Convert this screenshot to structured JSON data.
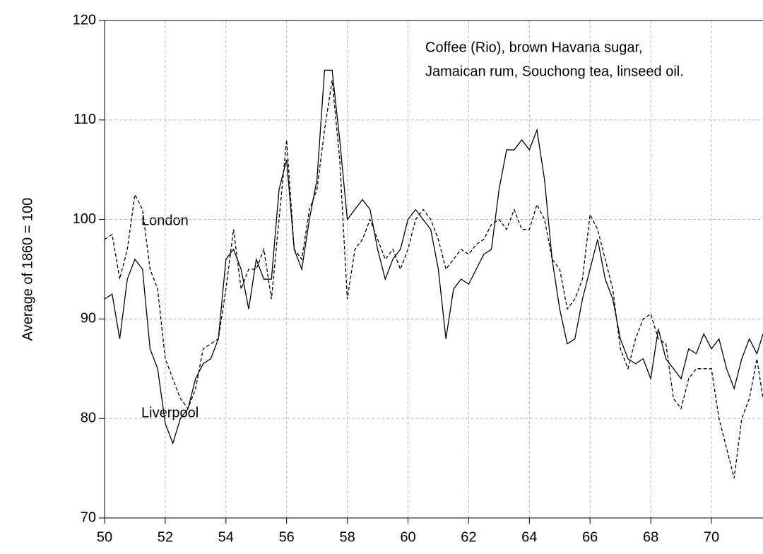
{
  "chart_data": {
    "type": "line",
    "y_label": "Average of 1860 = 100",
    "annotations": [
      "Coffee (Rio), brown Havana sugar,",
      "Jamaican rum, Souchong tea, linseed oil."
    ],
    "x": [
      50,
      50.25,
      50.5,
      50.75,
      51,
      51.25,
      51.5,
      51.75,
      52,
      52.25,
      52.5,
      52.75,
      53,
      53.25,
      53.5,
      53.75,
      54,
      54.25,
      54.5,
      54.75,
      55,
      55.25,
      55.5,
      55.75,
      56,
      56.25,
      56.5,
      56.75,
      57,
      57.25,
      57.5,
      57.75,
      58,
      58.25,
      58.5,
      58.75,
      59,
      59.25,
      59.5,
      59.75,
      60,
      60.25,
      60.5,
      60.75,
      61,
      61.25,
      61.5,
      61.75,
      62,
      62.25,
      62.5,
      62.75,
      63,
      63.25,
      63.5,
      63.75,
      64,
      64.25,
      64.5,
      64.75,
      65,
      65.25,
      65.5,
      65.75,
      66,
      66.25,
      66.5,
      66.75,
      67,
      67.25,
      67.5,
      67.75,
      68,
      68.25,
      68.5,
      68.75,
      69,
      69.25,
      69.5,
      69.75,
      70,
      70.25,
      70.5,
      70.75,
      71,
      71.25,
      71.5,
      71.7
    ],
    "series": [
      {
        "name": "London",
        "color": "#000000",
        "dash": true,
        "values": [
          98,
          98.5,
          94,
          97,
          102.5,
          101,
          95,
          93,
          86,
          84,
          82,
          81,
          83,
          87,
          87.5,
          88,
          93,
          99,
          93,
          95,
          95,
          97,
          92,
          100,
          108,
          97,
          96,
          101,
          103,
          109,
          114,
          106,
          92,
          97,
          98,
          100,
          98,
          96,
          97,
          95,
          97,
          100,
          101,
          100,
          98,
          95,
          96,
          97,
          96.5,
          97.5,
          98,
          99.5,
          100,
          99,
          101,
          99,
          99,
          101.5,
          100,
          96,
          95,
          91,
          92,
          94,
          100.5,
          99,
          96,
          93,
          87,
          85,
          88,
          90,
          90.5,
          88,
          87.5,
          82,
          81,
          84,
          85,
          85,
          85,
          80,
          77,
          74,
          80,
          82,
          86,
          82
        ]
      },
      {
        "name": "Liverpool",
        "color": "#000000",
        "dash": false,
        "values": [
          92,
          92.5,
          88,
          94,
          96,
          95,
          87,
          85,
          79.5,
          77.5,
          80,
          81,
          84,
          85.5,
          86,
          88,
          96,
          97,
          95,
          91,
          96,
          94,
          94,
          103,
          106,
          97,
          95,
          100,
          104,
          115,
          115,
          108,
          100,
          101,
          102,
          101,
          97,
          94,
          96,
          97,
          100,
          101,
          100,
          99,
          95,
          88,
          93,
          94,
          93.5,
          95,
          96.5,
          97,
          103,
          107,
          107,
          108,
          107,
          109,
          104,
          96,
          91,
          87.5,
          88,
          92,
          95,
          98,
          94,
          92,
          88,
          86,
          85.5,
          86,
          84,
          89,
          86,
          85,
          84,
          87,
          86.5,
          88.5,
          87,
          88,
          85,
          83,
          86,
          88,
          86.5,
          88.5
        ]
      }
    ],
    "xlim": [
      50,
      71.7
    ],
    "xticks": [
      50,
      52,
      54,
      56,
      58,
      60,
      62,
      64,
      66,
      68,
      70
    ],
    "ylim": [
      70,
      120
    ],
    "yticks": [
      70,
      80,
      90,
      100,
      110,
      120
    ],
    "grid": true
  }
}
